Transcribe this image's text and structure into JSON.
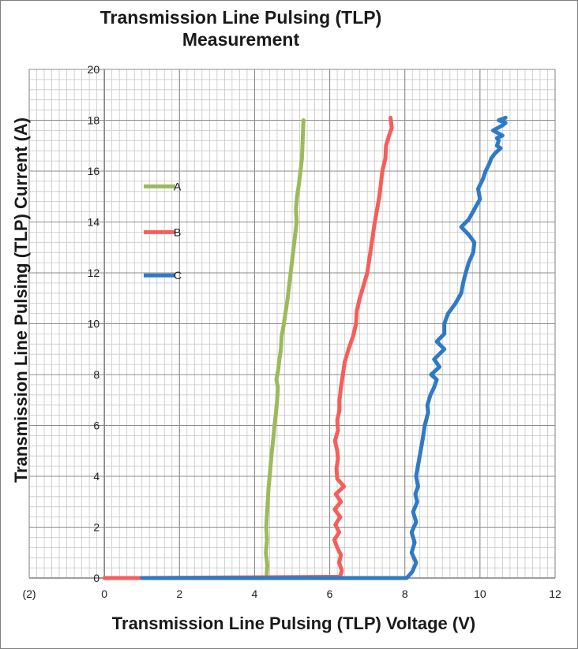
{
  "chart_data": {
    "type": "line",
    "title": [
      "Transmission Line Pulsing (TLP)",
      "Measurement"
    ],
    "xlabel": "Transmission Line Pulsing (TLP) Voltage (V)",
    "ylabel": "Transmission Line Pulsing (TLP) Current (A)",
    "xlim": [
      -2,
      12
    ],
    "ylim": [
      0,
      20
    ],
    "x_ticks": [
      -2,
      0,
      2,
      4,
      6,
      8,
      10,
      12
    ],
    "x_tick_labels": [
      "(2)",
      "0",
      "2",
      "4",
      "6",
      "8",
      "10",
      "12"
    ],
    "y_ticks": [
      0,
      2,
      4,
      6,
      8,
      10,
      12,
      14,
      16,
      18,
      20
    ],
    "y_tick_labels": [
      "0",
      "2",
      "4",
      "6",
      "8",
      "10",
      "12",
      "14",
      "16",
      "18",
      "20"
    ],
    "grid": true,
    "legend_position": "left",
    "series": [
      {
        "name": "A",
        "color": "#9bbb59",
        "x": [
          4.32,
          4.34,
          4.3,
          4.33,
          4.31,
          4.33,
          4.35,
          4.37,
          4.4,
          4.43,
          4.46,
          4.5,
          4.53,
          4.57,
          4.6,
          4.62,
          4.58,
          4.63,
          4.66,
          4.7,
          4.72,
          4.78,
          4.83,
          4.88,
          4.92,
          4.96,
          5.0,
          5.04,
          5.08,
          5.12,
          5.1,
          5.13,
          5.18,
          5.22,
          5.26,
          5.28,
          5.3
        ],
        "y": [
          0.15,
          0.5,
          1.0,
          1.5,
          2.0,
          2.5,
          3.0,
          3.5,
          4.0,
          4.5,
          5.0,
          5.5,
          6.0,
          6.5,
          7.0,
          7.5,
          7.8,
          8.2,
          8.6,
          9.0,
          9.5,
          10.0,
          10.5,
          11.0,
          11.5,
          12.0,
          12.5,
          13.0,
          13.5,
          14.0,
          14.5,
          15.0,
          15.5,
          16.0,
          16.5,
          17.2,
          18.0
        ]
      },
      {
        "name": "B",
        "color": "#f75d59",
        "x": [
          0.0,
          1.0,
          6.28,
          6.32,
          6.25,
          6.3,
          6.2,
          6.12,
          6.25,
          6.15,
          6.28,
          6.13,
          6.3,
          6.16,
          6.38,
          6.2,
          6.18,
          6.22,
          6.2,
          6.14,
          6.22,
          6.2,
          6.26,
          6.26,
          6.3,
          6.35,
          6.4,
          6.5,
          6.62,
          6.7,
          6.72,
          6.8,
          6.9,
          7.0,
          7.1,
          7.2,
          7.32,
          7.4,
          7.48,
          7.5,
          7.58,
          7.65,
          7.62
        ],
        "y": [
          0.0,
          0.0,
          0.05,
          0.3,
          0.6,
          0.9,
          1.2,
          1.5,
          1.8,
          2.1,
          2.4,
          2.7,
          3.0,
          3.3,
          3.6,
          3.9,
          4.3,
          4.7,
          5.0,
          5.4,
          5.8,
          6.2,
          6.6,
          7.0,
          7.5,
          8.0,
          8.5,
          9.0,
          9.5,
          10.0,
          10.5,
          11.0,
          11.5,
          12.0,
          13.0,
          14.0,
          15.0,
          16.0,
          16.5,
          17.0,
          17.4,
          17.7,
          18.1
        ]
      },
      {
        "name": "C",
        "color": "#2f7ac4",
        "x": [
          1.0,
          8.05,
          8.2,
          8.3,
          8.18,
          8.26,
          8.18,
          8.3,
          8.22,
          8.33,
          8.28,
          8.35,
          8.3,
          8.36,
          8.42,
          8.48,
          8.53,
          8.62,
          8.6,
          8.68,
          8.78,
          8.85,
          8.7,
          8.92,
          8.78,
          9.05,
          8.85,
          9.05,
          9.05,
          9.15,
          9.35,
          9.5,
          9.55,
          9.62,
          9.7,
          9.82,
          9.85,
          9.7,
          9.5,
          9.7,
          9.85,
          10.0,
          9.95,
          10.08,
          10.15,
          10.25,
          10.3,
          10.4,
          10.55,
          10.45,
          10.5,
          10.45,
          10.6,
          10.35,
          10.6,
          10.68,
          10.5,
          10.68
        ],
        "y": [
          0.0,
          0.0,
          0.25,
          0.6,
          1.0,
          1.4,
          1.8,
          2.2,
          2.6,
          3.0,
          3.3,
          3.6,
          4.0,
          4.5,
          5.0,
          5.5,
          6.0,
          6.5,
          6.8,
          7.2,
          7.5,
          7.8,
          8.0,
          8.3,
          8.6,
          9.0,
          9.3,
          9.6,
          10.0,
          10.4,
          10.8,
          11.2,
          11.6,
          12.0,
          12.4,
          12.8,
          13.2,
          13.5,
          13.8,
          14.1,
          14.5,
          14.9,
          15.3,
          15.7,
          16.0,
          16.3,
          16.5,
          16.7,
          16.9,
          17.0,
          17.2,
          17.3,
          17.4,
          17.6,
          17.8,
          17.9,
          18.0,
          18.1
        ]
      }
    ]
  }
}
